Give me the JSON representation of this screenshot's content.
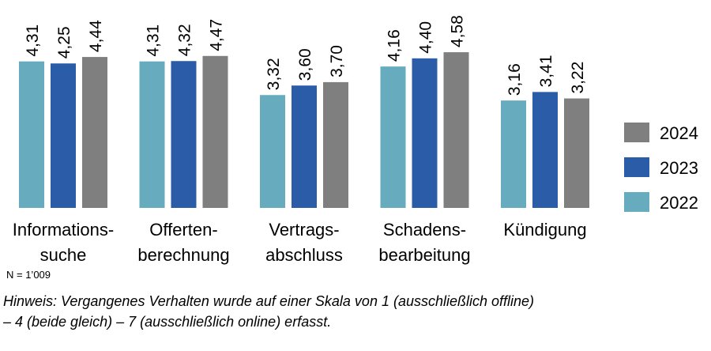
{
  "chart_data": {
    "type": "bar",
    "categories": [
      "Informations-\nsuche",
      "Offerten-\nberechnung",
      "Vertrags-\nabschluss",
      "Schadens-\nbearbeitung",
      "Kündigung"
    ],
    "series": [
      {
        "name": "2022",
        "color": "#66acbe",
        "values": [
          4.31,
          4.31,
          3.32,
          4.16,
          3.16
        ],
        "labels": [
          "4,31",
          "4,31",
          "3,32",
          "4,16",
          "3,16"
        ]
      },
      {
        "name": "2023",
        "color": "#2a5ca8",
        "values": [
          4.25,
          4.32,
          3.6,
          4.4,
          3.41
        ],
        "labels": [
          "4,25",
          "4,32",
          "3,60",
          "4,40",
          "3,41"
        ]
      },
      {
        "name": "2024",
        "color": "#7f7f7f",
        "values": [
          4.44,
          4.47,
          3.7,
          4.58,
          3.22
        ],
        "labels": [
          "4,44",
          "4,47",
          "3,70",
          "4,58",
          "3,22"
        ]
      }
    ],
    "ylim": [
      0,
      6.1
    ],
    "grid": false,
    "legend": "right"
  },
  "sample_size": "N = 1’009",
  "note": [
    "Hinweis: Vergangenes Verhalten wurde auf einer Skala von 1 (ausschließlich offline)",
    "– 4 (beide gleich) – 7 (ausschließlich online) erfasst."
  ]
}
